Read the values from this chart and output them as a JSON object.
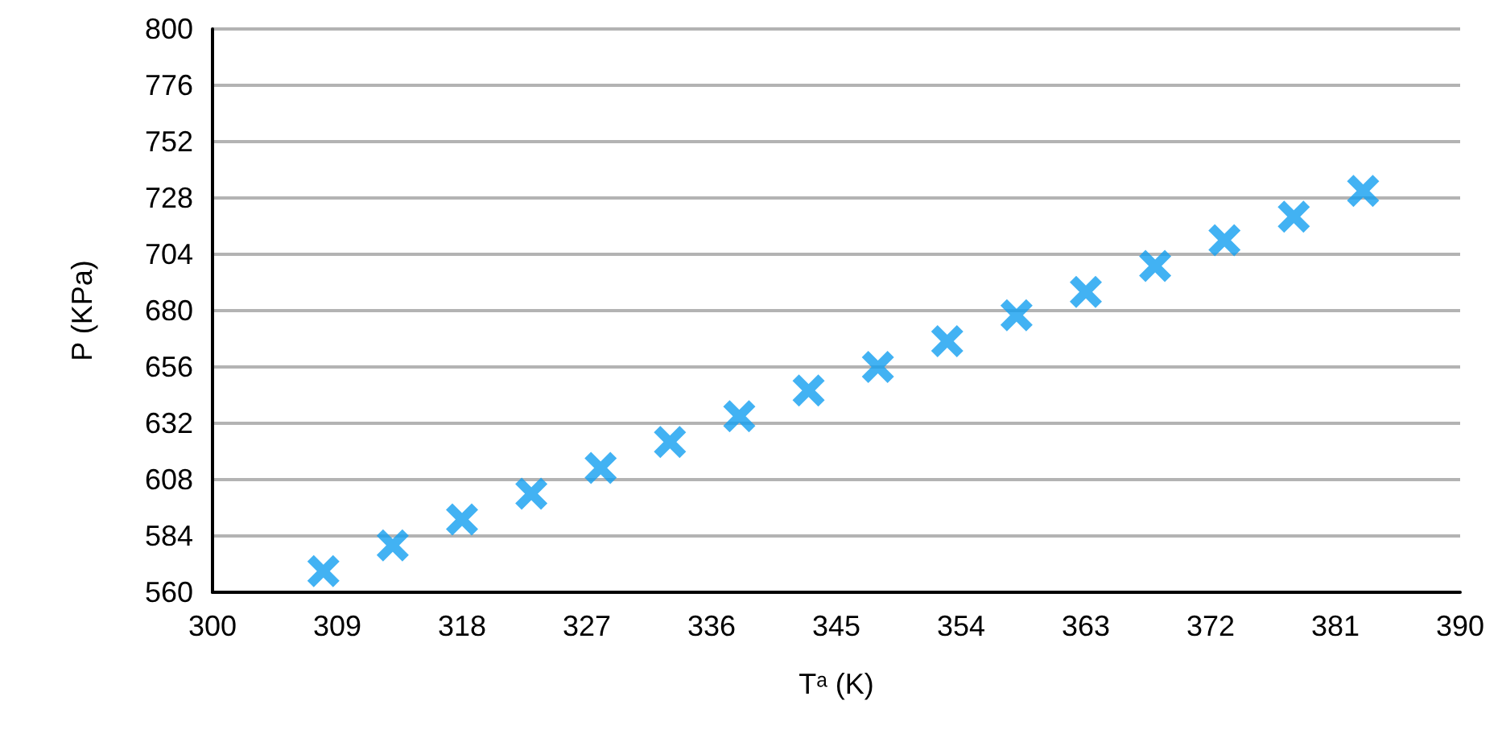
{
  "chart_data": {
    "type": "scatter",
    "xlabel": "Tᵃ (K)",
    "ylabel": "P (KPa)",
    "x": [
      308,
      313,
      318,
      323,
      328,
      333,
      338,
      343,
      348,
      353,
      358,
      363,
      368,
      373,
      378,
      383
    ],
    "values": [
      569,
      580,
      591,
      602,
      613,
      624,
      635,
      646,
      656,
      667,
      678,
      688,
      699,
      710,
      720,
      731
    ],
    "color": "#139ff0",
    "marker": "cross",
    "xlim": [
      300,
      390
    ],
    "xticks": [
      300,
      309,
      318,
      327,
      336,
      345,
      354,
      363,
      372,
      381,
      390
    ],
    "ylim": [
      560,
      800
    ],
    "yticks": [
      560,
      584,
      608,
      632,
      656,
      680,
      704,
      728,
      752,
      776,
      800
    ],
    "grid": "y"
  }
}
